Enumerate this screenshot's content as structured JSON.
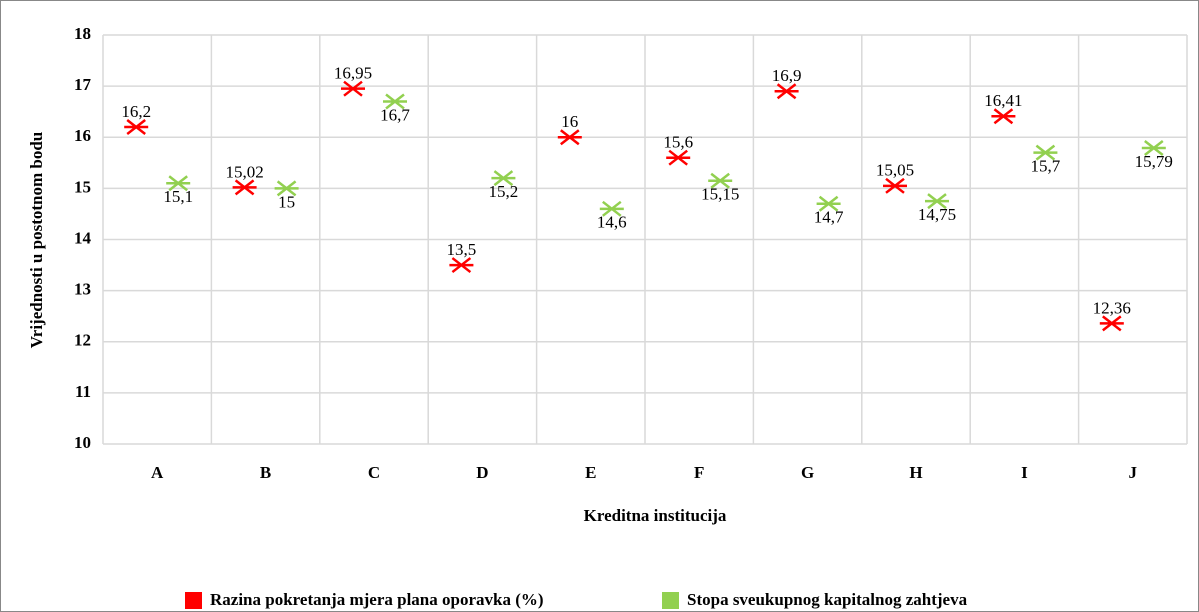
{
  "chart_data": {
    "type": "scatter",
    "x_label": "Kreditna institucija",
    "y_label": "Vrijednosti u postotnom bodu",
    "categories": [
      "A",
      "B",
      "C",
      "D",
      "E",
      "F",
      "G",
      "H",
      "I",
      "J"
    ],
    "series": [
      {
        "name": "Razina pokretanja mjera plana oporavka (%)",
        "color": "#ff0000",
        "values": [
          16.2,
          15.02,
          16.95,
          13.5,
          16,
          15.6,
          16.9,
          15.05,
          16.41,
          12.36
        ],
        "value_labels": [
          "16,2",
          "15,02",
          "16,95",
          "13,5",
          "16",
          "15,6",
          "16,9",
          "15,05",
          "16,41",
          "12,36"
        ]
      },
      {
        "name": "Stopa sveukupnog kapitalnog zahtjeva",
        "color": "#92d050",
        "values": [
          15.1,
          15,
          16.7,
          15.2,
          14.6,
          15.15,
          14.7,
          14.75,
          15.7,
          15.79
        ],
        "value_labels": [
          "15,1",
          "15",
          "16,7",
          "15,2",
          "14,6",
          "15,15",
          "14,7",
          "14,75",
          "15,7",
          "15,79"
        ]
      }
    ],
    "ylim": [
      10,
      18
    ],
    "yticks": [
      10,
      11,
      12,
      13,
      14,
      15,
      16,
      17,
      18
    ],
    "grid": true,
    "legend": "bottom"
  }
}
